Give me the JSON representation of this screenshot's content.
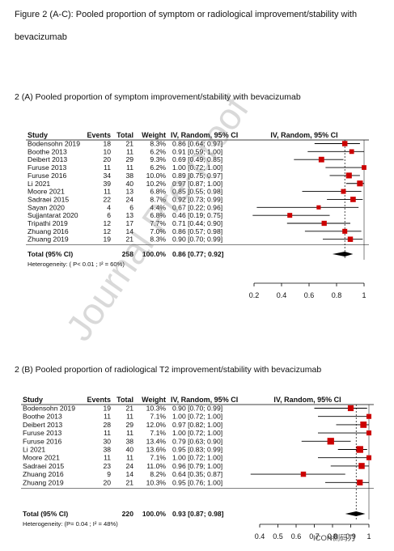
{
  "figure_caption": {
    "line1": "Figure 2 (A-C): Pooled proportion of symptom or radiological improvement/stability with",
    "line2": "bevacizumab"
  },
  "watermark": "Journal Pre-proof",
  "logo_text": "ICON侧码刀",
  "colors": {
    "marker": "#cc0000",
    "line": "#000000",
    "ref_line": "#000000",
    "diamond": "#000000"
  },
  "chart_data": [
    {
      "type": "forest",
      "title": "2 (A) Pooled proportion of symptom improvement/stability with bevacizumab",
      "columns": [
        "Study",
        "Events",
        "Total",
        "Weight",
        "IV, Random, 95% CI",
        "IV, Random, 95% CI"
      ],
      "studies": [
        {
          "study": "Bodensohn 2019",
          "events": "18",
          "total": "21",
          "weight": "8.3%",
          "ci_text": "0.86 [0.64; 0.97]",
          "est": 0.86,
          "lo": 0.64,
          "hi": 0.97
        },
        {
          "study": "Boothe 2013",
          "events": "10",
          "total": "11",
          "weight": "6.2%",
          "ci_text": "0.91 [0.59; 1.00]",
          "est": 0.91,
          "lo": 0.59,
          "hi": 1.0
        },
        {
          "study": "Deibert 2013",
          "events": "20",
          "total": "29",
          "weight": "9.3%",
          "ci_text": "0.69 [0.49; 0.85]",
          "est": 0.69,
          "lo": 0.49,
          "hi": 0.85
        },
        {
          "study": "Furuse 2013",
          "events": "11",
          "total": "11",
          "weight": "6.2%",
          "ci_text": "1.00 [0.72; 1.00]",
          "est": 1.0,
          "lo": 0.72,
          "hi": 1.0
        },
        {
          "study": "Furuse 2016",
          "events": "34",
          "total": "38",
          "weight": "10.0%",
          "ci_text": "0.89 [0.75; 0.97]",
          "est": 0.89,
          "lo": 0.75,
          "hi": 0.97
        },
        {
          "study": "Li  2021",
          "events": "39",
          "total": "40",
          "weight": "10.2%",
          "ci_text": "0.97 [0.87; 1.00]",
          "est": 0.97,
          "lo": 0.87,
          "hi": 1.0
        },
        {
          "study": "Moore 2021",
          "events": "11",
          "total": "13",
          "weight": "6.8%",
          "ci_text": "0.85 [0.55; 0.98]",
          "est": 0.85,
          "lo": 0.55,
          "hi": 0.98
        },
        {
          "study": "Sadraei 2015",
          "events": "22",
          "total": "24",
          "weight": "8.7%",
          "ci_text": "0.92 [0.73; 0.99]",
          "est": 0.92,
          "lo": 0.73,
          "hi": 0.99
        },
        {
          "study": "Sayan 2020",
          "events": "4",
          "total": "6",
          "weight": "4.4%",
          "ci_text": "0.67 [0.22; 0.96]",
          "est": 0.67,
          "lo": 0.22,
          "hi": 0.96
        },
        {
          "study": "Sujjantarat 2020",
          "events": "6",
          "total": "13",
          "weight": "6.8%",
          "ci_text": "0.46 [0.19; 0.75]",
          "est": 0.46,
          "lo": 0.19,
          "hi": 0.75
        },
        {
          "study": "Tripathi 2019",
          "events": "12",
          "total": "17",
          "weight": "7.7%",
          "ci_text": "0.71 [0.44; 0.90]",
          "est": 0.71,
          "lo": 0.44,
          "hi": 0.9
        },
        {
          "study": "Zhuang 2016",
          "events": "12",
          "total": "14",
          "weight": "7.0%",
          "ci_text": "0.86 [0.57; 0.98]",
          "est": 0.86,
          "lo": 0.57,
          "hi": 0.98
        },
        {
          "study": "Zhuang 2019",
          "events": "19",
          "total": "21",
          "weight": "8.3%",
          "ci_text": "0.90 [0.70; 0.99]",
          "est": 0.9,
          "lo": 0.7,
          "hi": 0.99
        }
      ],
      "total": {
        "label": "Total (95% CI)",
        "total": "258",
        "weight": "100.0%",
        "ci_text": "0.86 [0.77; 0.92]",
        "est": 0.86,
        "lo": 0.77,
        "hi": 0.92
      },
      "heterogeneity": "Heterogeneity:  ( P< 0.01 ; I² = 60%)",
      "x_ticks": [
        "0.2",
        "0.4",
        "0.6",
        "0.8",
        "1"
      ],
      "xlim": [
        0.2,
        1.0
      ],
      "ref_line": 0.86
    },
    {
      "type": "forest",
      "title": "2 (B) Pooled proportion of radiological T2 improvement/stability with bevacizumab",
      "columns": [
        "Study",
        "Events",
        "Total",
        "Weight",
        "IV, Random, 95% CI",
        "IV, Random, 95% CI"
      ],
      "studies": [
        {
          "study": "Bodensohn 2019",
          "events": "19",
          "total": "21",
          "weight": "10.3%",
          "ci_text": "0.90 [0.70; 0.99]",
          "est": 0.9,
          "lo": 0.7,
          "hi": 0.99
        },
        {
          "study": "Boothe 2013",
          "events": "11",
          "total": "11",
          "weight": "7.1%",
          "ci_text": "1.00 [0.72; 1.00]",
          "est": 1.0,
          "lo": 0.72,
          "hi": 1.0
        },
        {
          "study": "Deibert 2013",
          "events": "28",
          "total": "29",
          "weight": "12.0%",
          "ci_text": "0.97 [0.82; 1.00]",
          "est": 0.97,
          "lo": 0.82,
          "hi": 1.0
        },
        {
          "study": "Furuse 2013",
          "events": "11",
          "total": "11",
          "weight": "7.1%",
          "ci_text": "1.00 [0.72; 1.00]",
          "est": 1.0,
          "lo": 0.72,
          "hi": 1.0
        },
        {
          "study": "Furuse 2016",
          "events": "30",
          "total": "38",
          "weight": "13.4%",
          "ci_text": "0.79 [0.63; 0.90]",
          "est": 0.79,
          "lo": 0.63,
          "hi": 0.9
        },
        {
          "study": "Li  2021",
          "events": "38",
          "total": "40",
          "weight": "13.6%",
          "ci_text": "0.95 [0.83; 0.99]",
          "est": 0.95,
          "lo": 0.83,
          "hi": 0.99
        },
        {
          "study": "Moore 2021",
          "events": "11",
          "total": "11",
          "weight": "7.1%",
          "ci_text": "1.00 [0.72; 1.00]",
          "est": 1.0,
          "lo": 0.72,
          "hi": 1.0
        },
        {
          "study": "Sadraei 2015",
          "events": "23",
          "total": "24",
          "weight": "11.0%",
          "ci_text": "0.96 [0.79; 1.00]",
          "est": 0.96,
          "lo": 0.79,
          "hi": 1.0
        },
        {
          "study": "Zhuang 2016",
          "events": "9",
          "total": "14",
          "weight": "8.2%",
          "ci_text": "0.64 [0.35; 0.87]",
          "est": 0.64,
          "lo": 0.35,
          "hi": 0.87
        },
        {
          "study": "Zhuang 2019",
          "events": "20",
          "total": "21",
          "weight": "10.3%",
          "ci_text": "0.95 [0.76; 1.00]",
          "est": 0.95,
          "lo": 0.76,
          "hi": 1.0
        }
      ],
      "total": {
        "label": "Total (95% CI)",
        "total": "220",
        "weight": "100.0%",
        "ci_text": "0.93 [0.87; 0.98]",
        "est": 0.93,
        "lo": 0.87,
        "hi": 0.98
      },
      "heterogeneity": "Heterogeneity: (P= 0.04 ; I² = 48%)",
      "x_ticks": [
        "0.4",
        "0.5",
        "0.6",
        "0.7",
        "0.8",
        "0.9",
        "1"
      ],
      "xlim": [
        0.4,
        1.0
      ],
      "ref_line": 0.93
    }
  ]
}
